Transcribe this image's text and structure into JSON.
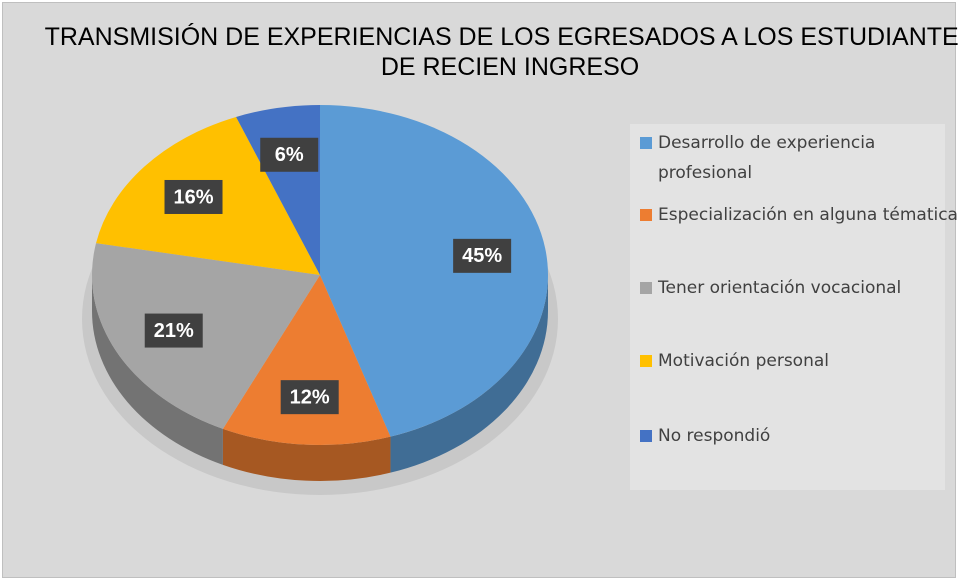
{
  "chart_data": {
    "type": "pie",
    "title": "TRANSMISIÓN DE EXPERIENCIAS DE LOS EGRESADOS A LOS ESTUDIANTES DE RECIEN INGRESO",
    "categories": [
      "Desarrollo de experiencia profesional",
      "Especialización en alguna tématica",
      "Tener orientación vocacional",
      "Motivación personal",
      "No respondió"
    ],
    "values": [
      45,
      12,
      21,
      16,
      6
    ],
    "value_labels": [
      "45%",
      "12%",
      "21%",
      "16%",
      "6%"
    ],
    "colors": [
      "#5b9bd5",
      "#ed7d31",
      "#a5a5a5",
      "#ffc000",
      "#4472c4"
    ],
    "legend": "right"
  }
}
